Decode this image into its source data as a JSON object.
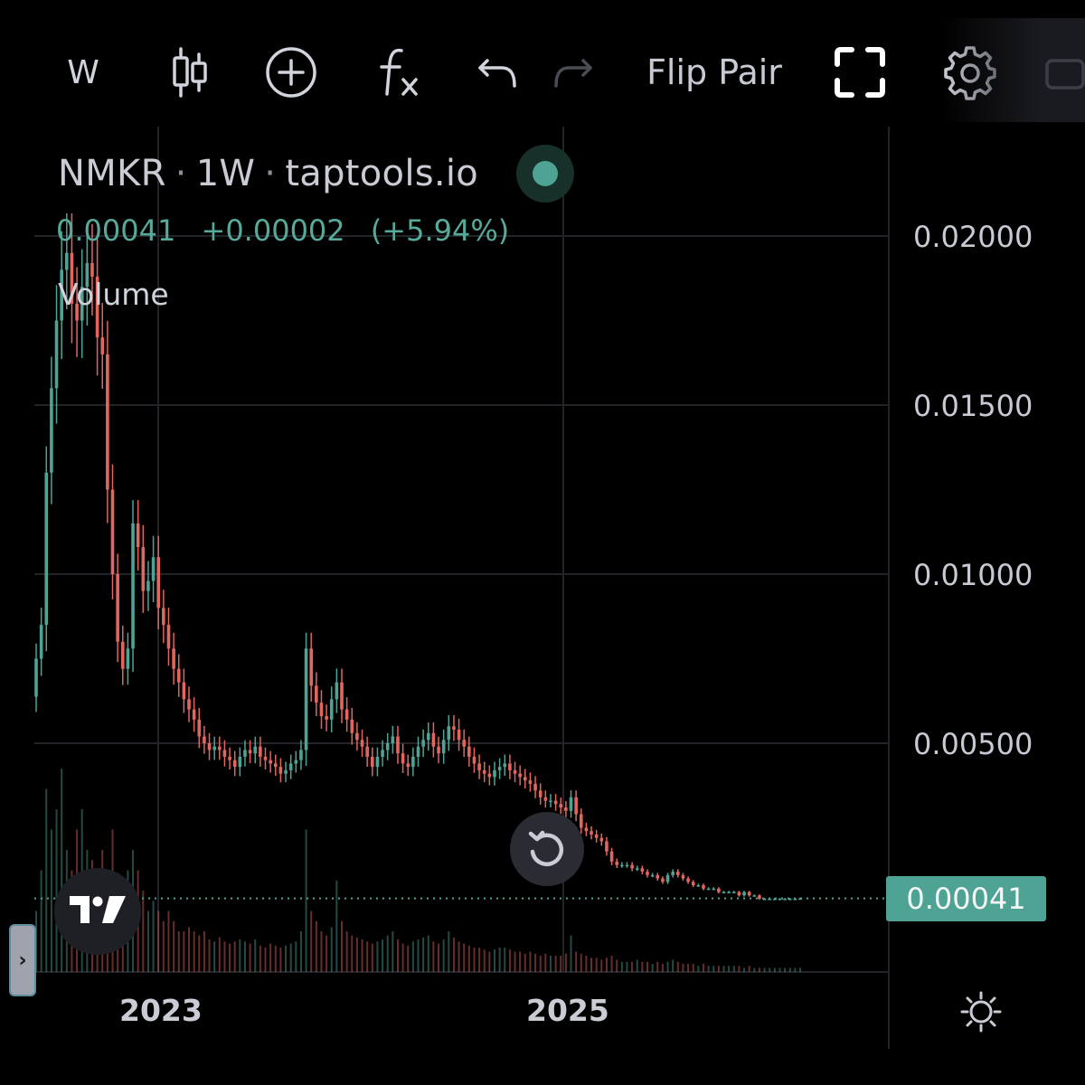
{
  "toolbar": {
    "interval_label": "W",
    "flip_pair_label": "Flip Pair",
    "icons": [
      "candles-icon",
      "add-circle-icon",
      "function-icon",
      "undo-icon",
      "redo-icon",
      "fullscreen-icon",
      "gear-icon",
      "camera-icon"
    ]
  },
  "legend": {
    "symbol": "NMKR",
    "interval": "1W",
    "source": "taptools.io",
    "sep": "·",
    "last": "0.00041",
    "change": "+0.00002",
    "change_pct": "(+5.94%)",
    "volume_label": "Volume"
  },
  "price_axis": {
    "labels": [
      "0.02000",
      "0.01500",
      "0.01000",
      "0.00500"
    ],
    "current": "0.00041"
  },
  "time_axis": {
    "labels": [
      "2023",
      "2025"
    ]
  },
  "side_handle_glyph": "›",
  "colors": {
    "up": "#4fa394",
    "down": "#e0665f",
    "background": "#000000",
    "grid": "#23242a"
  },
  "chart_data": {
    "type": "candlestick",
    "title": "NMKR · 1W · taptools.io",
    "ylabel": "",
    "ylim": [
      0,
      0.022
    ],
    "y_ticks": [
      0.005,
      0.01,
      0.015,
      0.02
    ],
    "x_ticks": [
      "2023",
      "2025"
    ],
    "last_price": 0.00041,
    "grid": true,
    "close_series": [
      0.0075,
      0.0085,
      0.013,
      0.0155,
      0.0175,
      0.019,
      0.0195,
      0.018,
      0.0175,
      0.0185,
      0.0192,
      0.0188,
      0.017,
      0.0165,
      0.0125,
      0.01,
      0.008,
      0.0072,
      0.0078,
      0.0115,
      0.0108,
      0.0095,
      0.0098,
      0.0105,
      0.009,
      0.0085,
      0.0078,
      0.0072,
      0.0068,
      0.0063,
      0.006,
      0.0057,
      0.0052,
      0.005,
      0.0048,
      0.0049,
      0.0048,
      0.0046,
      0.0045,
      0.0043,
      0.0046,
      0.0048,
      0.0047,
      0.0049,
      0.0046,
      0.0045,
      0.0044,
      0.0043,
      0.0041,
      0.0042,
      0.0044,
      0.0045,
      0.0048,
      0.0078,
      0.0067,
      0.0062,
      0.0058,
      0.0057,
      0.0063,
      0.0068,
      0.006,
      0.0057,
      0.0053,
      0.0051,
      0.0049,
      0.0046,
      0.0043,
      0.0046,
      0.0048,
      0.005,
      0.0052,
      0.0047,
      0.0044,
      0.0043,
      0.0046,
      0.0049,
      0.0051,
      0.0053,
      0.0049,
      0.0047,
      0.0051,
      0.0055,
      0.0054,
      0.0051,
      0.0049,
      0.0046,
      0.0044,
      0.0042,
      0.0041,
      0.004,
      0.0042,
      0.0043,
      0.0044,
      0.0042,
      0.0041,
      0.004,
      0.0039,
      0.0038,
      0.0036,
      0.0034,
      0.0033,
      0.0033,
      0.0032,
      0.0031,
      0.003,
      0.0034,
      0.0029,
      0.0025,
      0.0024,
      0.0023,
      0.0022,
      0.0021,
      0.0018,
      0.0015,
      0.0014,
      0.0014,
      0.0014,
      0.0013,
      0.0013,
      0.0012,
      0.0011,
      0.0011,
      0.001,
      0.0009,
      0.0011,
      0.0012,
      0.0011,
      0.001,
      0.0009,
      0.0008,
      0.0008,
      0.0007,
      0.0007,
      0.0007,
      0.0006,
      0.0006,
      0.0006,
      0.0006,
      0.0005,
      0.0006,
      0.0005,
      0.0005,
      0.0004,
      0.0004,
      0.0004,
      0.0004,
      0.0004,
      0.0004,
      0.0004,
      0.0004,
      0.00041
    ],
    "volume_relative": [
      0.3,
      0.5,
      0.9,
      0.7,
      0.8,
      1.0,
      0.6,
      0.5,
      0.7,
      0.8,
      0.6,
      0.55,
      0.5,
      0.6,
      0.5,
      0.7,
      0.4,
      0.35,
      0.5,
      0.6,
      0.5,
      0.4,
      0.3,
      0.35,
      0.3,
      0.25,
      0.3,
      0.25,
      0.2,
      0.2,
      0.22,
      0.2,
      0.18,
      0.2,
      0.16,
      0.15,
      0.17,
      0.15,
      0.14,
      0.15,
      0.16,
      0.15,
      0.14,
      0.16,
      0.13,
      0.12,
      0.14,
      0.13,
      0.12,
      0.13,
      0.14,
      0.15,
      0.2,
      0.7,
      0.3,
      0.25,
      0.2,
      0.18,
      0.22,
      0.45,
      0.25,
      0.2,
      0.18,
      0.17,
      0.16,
      0.15,
      0.14,
      0.15,
      0.16,
      0.18,
      0.2,
      0.16,
      0.14,
      0.13,
      0.15,
      0.16,
      0.17,
      0.18,
      0.15,
      0.14,
      0.16,
      0.2,
      0.17,
      0.15,
      0.14,
      0.13,
      0.12,
      0.12,
      0.11,
      0.1,
      0.11,
      0.12,
      0.12,
      0.11,
      0.1,
      0.1,
      0.09,
      0.1,
      0.09,
      0.08,
      0.09,
      0.08,
      0.08,
      0.08,
      0.09,
      0.18,
      0.1,
      0.09,
      0.08,
      0.07,
      0.07,
      0.06,
      0.07,
      0.08,
      0.06,
      0.05,
      0.05,
      0.05,
      0.06,
      0.05,
      0.05,
      0.04,
      0.05,
      0.04,
      0.05,
      0.06,
      0.05,
      0.04,
      0.04,
      0.04,
      0.03,
      0.04,
      0.03,
      0.03,
      0.03,
      0.03,
      0.03,
      0.03,
      0.03,
      0.02,
      0.03,
      0.02,
      0.02,
      0.02,
      0.02,
      0.02,
      0.02,
      0.02,
      0.02,
      0.02,
      0.02,
      0.02,
      0.02
    ]
  }
}
